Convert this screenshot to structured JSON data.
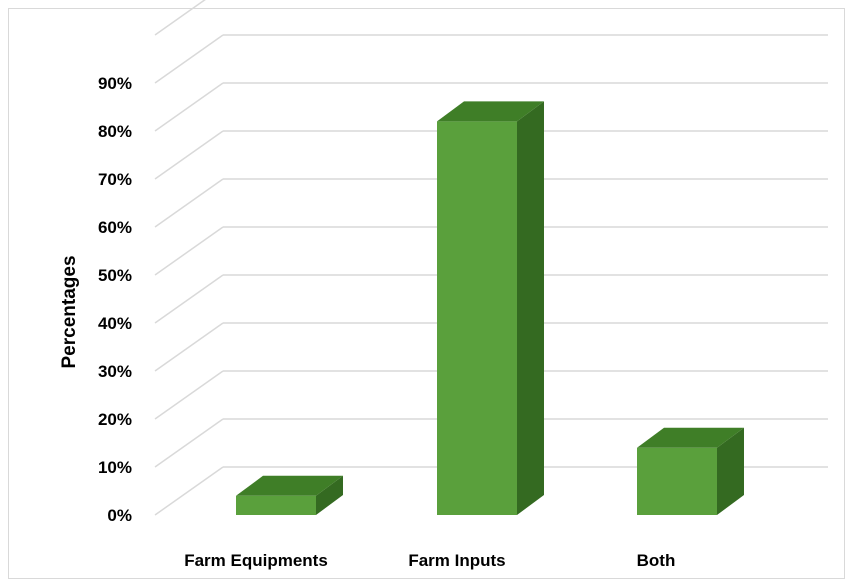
{
  "chart_data": {
    "type": "bar",
    "title": "",
    "xlabel": "",
    "ylabel": "Percentages",
    "categories": [
      "Farm Equipments",
      "Farm Inputs",
      "Both"
    ],
    "values": [
      4,
      82,
      14
    ],
    "ylim": [
      0,
      100
    ],
    "yticks": [
      "0%",
      "10%",
      "20%",
      "30%",
      "40%",
      "50%",
      "60%",
      "70%",
      "80%",
      "90%"
    ],
    "grid": true,
    "legend": "none",
    "colors": {
      "bar_front": "#5aa03c",
      "bar_top": "#3f7e27",
      "bar_side": "#346a21",
      "gridline": "#d9d9d9"
    }
  }
}
